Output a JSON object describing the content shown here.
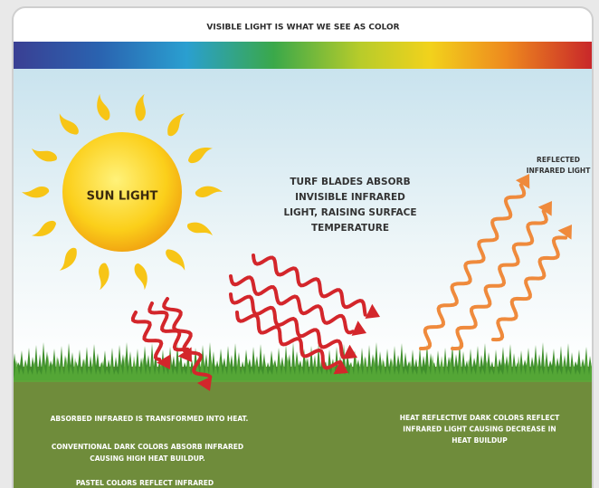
{
  "header": {
    "title": "VISIBLE LIGHT IS WHAT WE SEE AS COLOR"
  },
  "sun": {
    "label": "SUN LIGHT"
  },
  "center_note": {
    "lines": [
      "TURF BLADES ABSORB",
      "INVISIBLE INFRARED",
      "LIGHT, RAISING SURFACE",
      "TEMPERATURE"
    ]
  },
  "reflected_note": {
    "lines": [
      "REFLECTED",
      "INFRARED LIGHT"
    ]
  },
  "bottom_left": {
    "lines": [
      "ABSORBED INFRARED IS TRANSFORMED INTO HEAT.",
      "CONVENTIONAL DARK COLORS ABSORB INFRARED",
      "CAUSING HIGH HEAT BUILDUP.",
      "PASTEL COLORS REFLECT INFRARED"
    ]
  },
  "bottom_right": {
    "lines": [
      "HEAT REFLECTIVE DARK COLORS REFLECT",
      "INFRARED LIGHT CAUSING DECREASE IN",
      "HEAT BUILDUP"
    ]
  }
}
